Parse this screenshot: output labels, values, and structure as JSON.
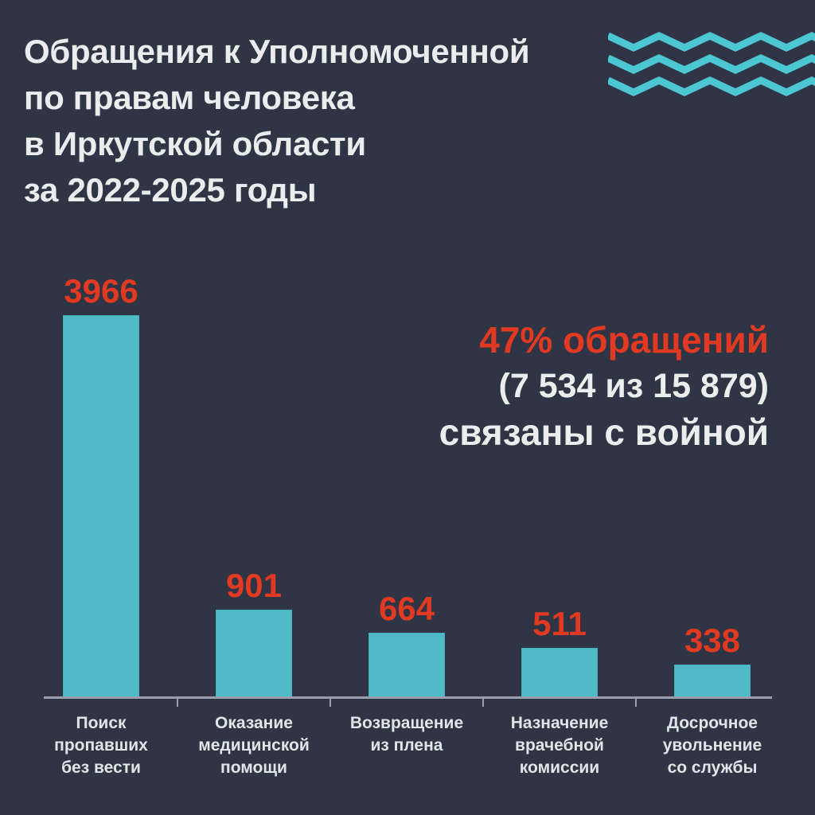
{
  "page": {
    "background": "#2f3544"
  },
  "title": {
    "lines": [
      "Обращения к Уполномоченной",
      "по правам человека",
      "в Иркутской области",
      "за 2022-2025 годы"
    ],
    "color": "#ebecee"
  },
  "wave_icon": {
    "color": "#4ec7d4",
    "lines": 3
  },
  "annotation": {
    "highlight": "47% обращений",
    "detail": "(7 534 из 15 879)",
    "tail": "связаны с войной",
    "highlight_color": "#e23a22",
    "text_color": "#eceded"
  },
  "chart_data": {
    "type": "bar",
    "title": "Обращения к Уполномоченной по правам человека в Иркутской области за 2022-2025 годы",
    "categories": [
      "Поиск пропавших без вести",
      "Оказание медицинской помощи",
      "Возвращение из плена",
      "Назначение врачебной комиссии",
      "Досрочное увольнение со службы"
    ],
    "label_lines": [
      "Поиск\nпропавших\nбез вести",
      "Оказание\nмедицинской\nпомощи",
      "Возвращение\nиз плена",
      "Назначение\nврачебной\nкомиссии",
      "Досрочное\nувольнение\nсо службы"
    ],
    "values": [
      3966,
      901,
      664,
      511,
      338
    ],
    "ylim": [
      0,
      3966
    ],
    "grid": false,
    "legend_position": "none",
    "bar_color": "#4dbac5",
    "value_label_color": "#e23a22",
    "axis_color": "#99a0ab",
    "background_color": "#2f3544"
  }
}
